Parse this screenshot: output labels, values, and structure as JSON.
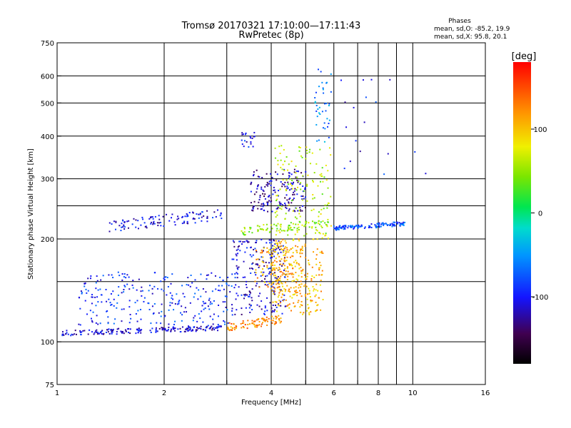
{
  "chart_data": {
    "type": "scatter",
    "title": "Tromsø 20170321 17:10:00—17:11:43",
    "subtitle": "RwPretec (8p)",
    "xlabel": "Frequency [MHz]",
    "ylabel": "Stationary phase Virtual Height [km]",
    "x_scale": "log",
    "y_scale": "log",
    "xlim": [
      1,
      16
    ],
    "ylim": [
      75,
      750
    ],
    "x_ticks": [
      1,
      2,
      4,
      6,
      8,
      10,
      16
    ],
    "x_ticks_minor": [
      3,
      5,
      7,
      9
    ],
    "y_ticks": [
      75,
      100,
      200,
      300,
      400,
      500,
      600,
      750
    ],
    "y_ticks_minor": [
      150,
      250
    ],
    "grid": true,
    "stats": {
      "heading": "Phases",
      "line_o": "mean, sd,O: -85.2, 19.9",
      "line_x": "mean, sd,X:  95.8, 20.1"
    },
    "colorbar": {
      "label": "[deg]",
      "range": [
        -180,
        180
      ],
      "ticks": [
        100,
        0,
        -100
      ],
      "tick_labels": [
        "100",
        "0",
        "-100"
      ]
    },
    "series_clusters": [
      {
        "f": [
          1.03,
          2.9
        ],
        "h": [
          104,
          112
        ],
        "phase": -110,
        "count": 190,
        "kind": "trace"
      },
      {
        "f": [
          1.15,
          3.2
        ],
        "h": [
          112,
          160
        ],
        "phase": -90,
        "count": 260,
        "kind": "cloud"
      },
      {
        "f": [
          1.4,
          2.9
        ],
        "h": [
          210,
          245
        ],
        "phase": -105,
        "count": 110,
        "kind": "trace"
      },
      {
        "f": [
          3.0,
          4.3
        ],
        "h": [
          107,
          120
        ],
        "phase": 125,
        "count": 90,
        "kind": "trace"
      },
      {
        "f": [
          3.1,
          4.4
        ],
        "h": [
          120,
          200
        ],
        "phase": -110,
        "count": 220,
        "kind": "cloud"
      },
      {
        "f": [
          3.6,
          4.9
        ],
        "h": [
          140,
          190
        ],
        "phase": 110,
        "count": 140,
        "kind": "cloud"
      },
      {
        "f": [
          4.0,
          5.6
        ],
        "h": [
          120,
          200
        ],
        "phase": 105,
        "count": 220,
        "kind": "cloud"
      },
      {
        "f": [
          3.5,
          5.0
        ],
        "h": [
          240,
          320
        ],
        "phase": -120,
        "count": 170,
        "kind": "cloud"
      },
      {
        "f": [
          3.3,
          3.6
        ],
        "h": [
          370,
          410
        ],
        "phase": -100,
        "count": 20,
        "kind": "cloud"
      },
      {
        "f": [
          3.3,
          5.9
        ],
        "h": [
          205,
          230
        ],
        "phase": 50,
        "count": 90,
        "kind": "trace"
      },
      {
        "f": [
          4.1,
          5.9
        ],
        "h": [
          200,
          380
        ],
        "phase": 60,
        "count": 150,
        "kind": "cloud"
      },
      {
        "f": [
          5.3,
          5.9
        ],
        "h": [
          380,
          640
        ],
        "phase": -60,
        "count": 40,
        "kind": "cloud"
      },
      {
        "f": [
          6.0,
          9.5
        ],
        "h": [
          212,
          225
        ],
        "phase": -80,
        "count": 130,
        "kind": "trace"
      },
      {
        "f": [
          6.2,
          11.0
        ],
        "h": [
          300,
          600
        ],
        "phase": -100,
        "count": 18,
        "kind": "cloud"
      }
    ]
  }
}
